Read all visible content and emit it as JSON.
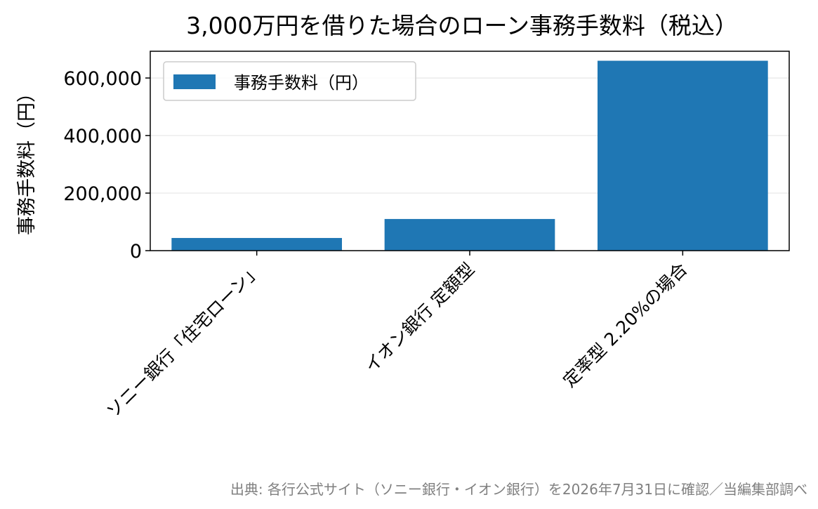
{
  "chart_data": {
    "type": "bar",
    "title": "3,000万円を借りた場合のローン事務手数料（税込）",
    "xlabel": "",
    "ylabel": "事務手数料（円）",
    "categories": [
      "ソニー銀行「住宅ローン」",
      "イオン銀行 定額型",
      "定率型 2.20%の場合"
    ],
    "series": [
      {
        "name": "事務手数料（円）",
        "values": [
          44000,
          110000,
          660000
        ]
      }
    ],
    "ylim": [
      0,
      693000
    ],
    "yticks": [
      0,
      200000,
      400000,
      600000
    ],
    "ytick_labels": [
      "0",
      "200,000",
      "400,000",
      "600,000"
    ],
    "grid": "horizontal",
    "legend_position": "top-left",
    "colors": {
      "bar": "#1f77b4",
      "grid": "#e6e6e6",
      "source_text": "#808080"
    }
  },
  "source_note": "出典: 各行公式サイト（ソニー銀行・イオン銀行）を2026年7月31日に確認／当編集部調べ"
}
